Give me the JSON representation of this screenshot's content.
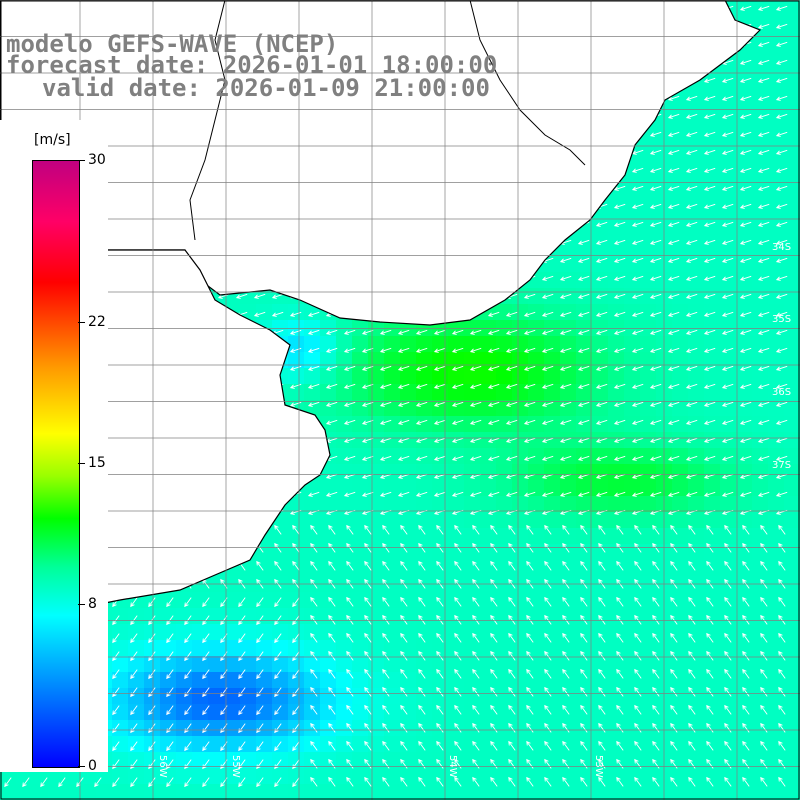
{
  "title": {
    "line1": "modelo GEFS-WAVE (NCEP)",
    "line2": "forecast date: 2026-01-01 18:00:00",
    "line3": "valid date: 2026-01-09 21:00:00"
  },
  "colorbar": {
    "units": "[m/s]",
    "ticks": [
      {
        "value": 30,
        "label": "30"
      },
      {
        "value": 22,
        "label": "22"
      },
      {
        "value": 15,
        "label": "15"
      },
      {
        "value": 8,
        "label": "8"
      },
      {
        "value": 0,
        "label": "0"
      }
    ],
    "range": [
      0,
      30
    ]
  },
  "grid_labels": {
    "lat_labels": [
      "34S",
      "35S",
      "36S",
      "37S"
    ],
    "lon_labels": [
      "56W",
      "55W",
      "54W",
      "53W"
    ]
  },
  "colors": {
    "speed_low": "#0000ff",
    "speed_mid": "#00ffff",
    "speed_high": "#00ff66",
    "land": "#ffffff",
    "coastline": "#000000",
    "vectors": "#ffffff"
  },
  "map": {
    "field": "wind speed [m/s] with direction vectors",
    "region": "Rio de la Plata and South Atlantic coast"
  }
}
